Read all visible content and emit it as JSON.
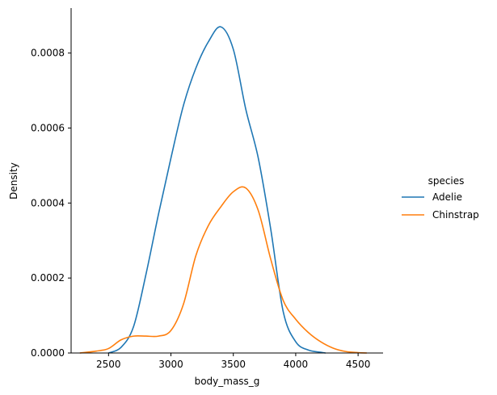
{
  "chart_data": {
    "type": "line",
    "xlabel": "body_mass_g",
    "ylabel": "Density",
    "xlim": [
      2200,
      4700
    ],
    "ylim": [
      0,
      0.00092
    ],
    "x_ticks": [
      2500,
      3000,
      3500,
      4000,
      4500
    ],
    "y_ticks": [
      0.0,
      0.0002,
      0.0004,
      0.0006,
      0.0008
    ],
    "y_tick_labels": [
      "0.0000",
      "0.0002",
      "0.0004",
      "0.0006",
      "0.0008"
    ],
    "legend": {
      "title": "species",
      "placement": "right"
    },
    "grid": false,
    "series": [
      {
        "name": "Adelie",
        "color": "#1f77b4",
        "x": [
          2500,
          2600,
          2700,
          2800,
          2900,
          3000,
          3100,
          3200,
          3300,
          3400,
          3500,
          3600,
          3700,
          3800,
          3900,
          4000,
          4100,
          4200,
          4240
        ],
        "y": [
          0.0,
          1.5e-05,
          7e-05,
          0.00021,
          0.00037,
          0.00052,
          0.00066,
          0.00076,
          0.00083,
          0.00087,
          0.00081,
          0.00065,
          0.00052,
          0.00033,
          0.00011,
          3e-05,
          8e-06,
          2e-06,
          0.0
        ]
      },
      {
        "name": "Chinstrap",
        "color": "#ff7f0e",
        "x": [
          2270,
          2400,
          2500,
          2600,
          2700,
          2800,
          2900,
          3000,
          3100,
          3200,
          3300,
          3400,
          3500,
          3600,
          3700,
          3800,
          3900,
          4000,
          4100,
          4200,
          4300,
          4400,
          4500,
          4570
        ],
        "y": [
          0.0,
          5e-06,
          1.2e-05,
          3.5e-05,
          4.5e-05,
          4.5e-05,
          4.5e-05,
          6e-05,
          0.00013,
          0.00026,
          0.00034,
          0.00039,
          0.00043,
          0.00044,
          0.00038,
          0.00025,
          0.00014,
          9e-05,
          5.5e-05,
          3e-05,
          1.3e-05,
          4e-06,
          1e-06,
          0.0
        ]
      }
    ]
  }
}
